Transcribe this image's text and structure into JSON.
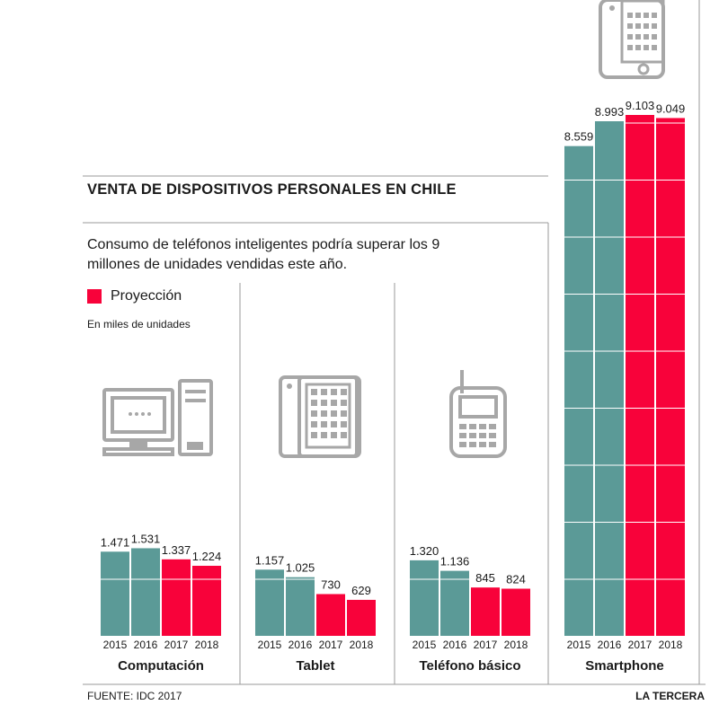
{
  "header": {
    "title": "VENTA DE DISPOSITIVOS PERSONALES EN CHILE",
    "subtitle": "Consumo de teléfonos inteligentes podría superar los 9 millones de unidades vendidas este año.",
    "legend_label": "Proyección",
    "units": "En miles de unidades"
  },
  "footer": {
    "source": "FUENTE: IDC 2017",
    "brand": "LA TERCERA"
  },
  "colors": {
    "actual": "#5b9a97",
    "projection": "#f8023a",
    "icon": "#a7a7a7",
    "divider": "#999999"
  },
  "icons": [
    "desktop-computer-icon",
    "tablet-icon",
    "feature-phone-icon",
    "smartphone-icon"
  ],
  "chart_data": [
    {
      "type": "bar",
      "title": "Computación",
      "categories": [
        "2015",
        "2016",
        "2017",
        "2018"
      ],
      "values": [
        1471,
        1531,
        1337,
        1224
      ],
      "value_labels": [
        "1.471",
        "1.531",
        "1.337",
        "1.224"
      ],
      "projected": [
        false,
        false,
        true,
        true
      ]
    },
    {
      "type": "bar",
      "title": "Tablet",
      "categories": [
        "2015",
        "2016",
        "2017",
        "2018"
      ],
      "values": [
        1157,
        1025,
        730,
        629
      ],
      "value_labels": [
        "1.157",
        "1.025",
        "730",
        "629"
      ],
      "projected": [
        false,
        false,
        true,
        true
      ]
    },
    {
      "type": "bar",
      "title": "Teléfono básico",
      "categories": [
        "2015",
        "2016",
        "2017",
        "2018"
      ],
      "values": [
        1320,
        1136,
        845,
        824
      ],
      "value_labels": [
        "1.320",
        "1.136",
        "845",
        "824"
      ],
      "projected": [
        false,
        false,
        true,
        true
      ]
    },
    {
      "type": "bar",
      "title": "Smartphone",
      "categories": [
        "2015",
        "2016",
        "2017",
        "2018"
      ],
      "values": [
        8559,
        8993,
        9103,
        9049
      ],
      "value_labels": [
        "8.559",
        "8.993",
        "9.103",
        "9.049"
      ],
      "projected": [
        false,
        false,
        true,
        true
      ]
    }
  ]
}
